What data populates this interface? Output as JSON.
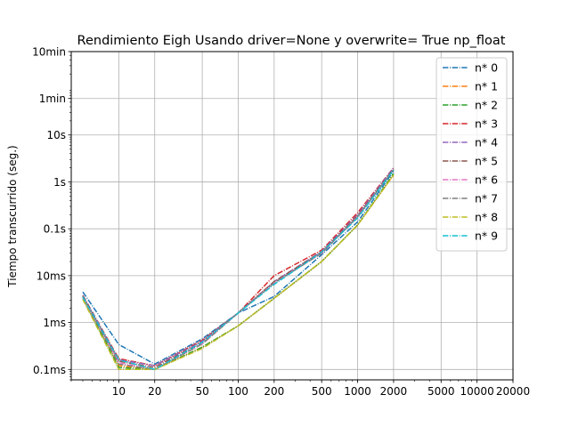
{
  "chart_data": {
    "type": "line",
    "title": "Rendimiento   Eigh Usando driver=None y overwrite= True np_float",
    "xlabel": "",
    "ylabel": "Tiempo transcurrido (seg.)",
    "x_scale": "log",
    "y_scale": "log",
    "xlim": [
      4,
      20000
    ],
    "ylim": [
      6e-05,
      600
    ],
    "grid": true,
    "legend_position": "top-right",
    "x_ticks": [
      {
        "value": 10,
        "label": "10"
      },
      {
        "value": 20,
        "label": "20"
      },
      {
        "value": 50,
        "label": "50"
      },
      {
        "value": 100,
        "label": "100"
      },
      {
        "value": 200,
        "label": "200"
      },
      {
        "value": 500,
        "label": "500"
      },
      {
        "value": 1000,
        "label": "1000"
      },
      {
        "value": 2000,
        "label": "2000"
      },
      {
        "value": 5000,
        "label": "5000"
      },
      {
        "value": 10000,
        "label": "10000"
      },
      {
        "value": 20000,
        "label": "20000"
      }
    ],
    "y_ticks": [
      {
        "value": 0.0001,
        "label": "0.1ms"
      },
      {
        "value": 0.001,
        "label": "1ms"
      },
      {
        "value": 0.01,
        "label": "10ms"
      },
      {
        "value": 0.1,
        "label": "0.1s"
      },
      {
        "value": 1,
        "label": "1s"
      },
      {
        "value": 10,
        "label": "10s"
      },
      {
        "value": 60,
        "label": "1min"
      },
      {
        "value": 600,
        "label": "10min"
      }
    ],
    "x": [
      5,
      10,
      20,
      50,
      100,
      200,
      500,
      1000,
      2000
    ],
    "series": [
      {
        "name": "n* 0",
        "color": "#1f77b4",
        "values": [
          0.0045,
          0.00034,
          0.00013,
          0.00045,
          0.0016,
          0.0036,
          0.028,
          0.14,
          1.7
        ]
      },
      {
        "name": "n* 1",
        "color": "#ff7f0e",
        "values": [
          0.0035,
          0.00012,
          0.0001,
          0.0003,
          0.00085,
          0.0033,
          0.02,
          0.12,
          1.4
        ]
      },
      {
        "name": "n* 2",
        "color": "#2ca02c",
        "values": [
          0.0033,
          0.00011,
          0.0001,
          0.0003,
          0.00085,
          0.0033,
          0.02,
          0.12,
          1.5
        ]
      },
      {
        "name": "n* 3",
        "color": "#d62728",
        "values": [
          0.0038,
          0.00017,
          0.00012,
          0.00042,
          0.0016,
          0.01,
          0.035,
          0.22,
          2.0
        ]
      },
      {
        "name": "n* 4",
        "color": "#9467bd",
        "values": [
          0.0038,
          0.00016,
          0.00012,
          0.0004,
          0.0016,
          0.0075,
          0.033,
          0.2,
          2.0
        ]
      },
      {
        "name": "n* 5",
        "color": "#8c564b",
        "values": [
          0.0037,
          0.00015,
          0.00011,
          0.00038,
          0.0016,
          0.0075,
          0.032,
          0.19,
          1.9
        ]
      },
      {
        "name": "n* 6",
        "color": "#e377c2",
        "values": [
          0.0034,
          0.00014,
          0.0001,
          0.00035,
          0.0016,
          0.007,
          0.03,
          0.18,
          1.8
        ]
      },
      {
        "name": "n* 7",
        "color": "#7f7f7f",
        "values": [
          0.0036,
          0.00013,
          0.0001,
          0.00035,
          0.0016,
          0.007,
          0.03,
          0.18,
          1.8
        ]
      },
      {
        "name": "n* 8",
        "color": "#bcbd22",
        "values": [
          0.0031,
          0.0001,
          0.0001,
          0.00028,
          0.00085,
          0.0033,
          0.02,
          0.12,
          1.4
        ]
      },
      {
        "name": "n* 9",
        "color": "#17becf",
        "values": [
          0.0035,
          0.00016,
          0.0001,
          0.00038,
          0.0016,
          0.0065,
          0.032,
          0.17,
          1.8
        ]
      }
    ]
  }
}
